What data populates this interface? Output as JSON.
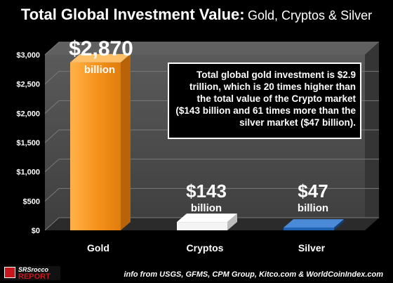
{
  "chart_data": {
    "type": "bar",
    "title": "Total Global Investment Value:",
    "subtitle": "Gold, Cryptos & Silver",
    "categories": [
      "Gold",
      "Cryptos",
      "Silver"
    ],
    "values": [
      2870,
      143,
      47
    ],
    "value_labels": [
      "$2,870",
      "$143",
      "$47"
    ],
    "value_units": [
      "billion",
      "billion",
      "billion"
    ],
    "yticks": [
      "$0",
      "$500",
      "$1,000",
      "$1,500",
      "$2,000",
      "$2,500",
      "$3,000"
    ],
    "ylim": [
      0,
      3000
    ],
    "grid": true,
    "legend": "none",
    "colors": {
      "gold": "#f7941d",
      "crypto": "#ffffff",
      "silver": "#1f63b5"
    }
  },
  "callout": "Total global gold investment is $2.9 trillion, which is 20 times higher than the total value of the Crypto market ($143 billion and 61 times more than the silver market ($47 billion).",
  "logo": {
    "line1": "SRSrocco",
    "line2": "REPORT"
  },
  "source": "info from USGS, GFMS, CPM Group, Kitco.com & WorldCoinIndex.com"
}
